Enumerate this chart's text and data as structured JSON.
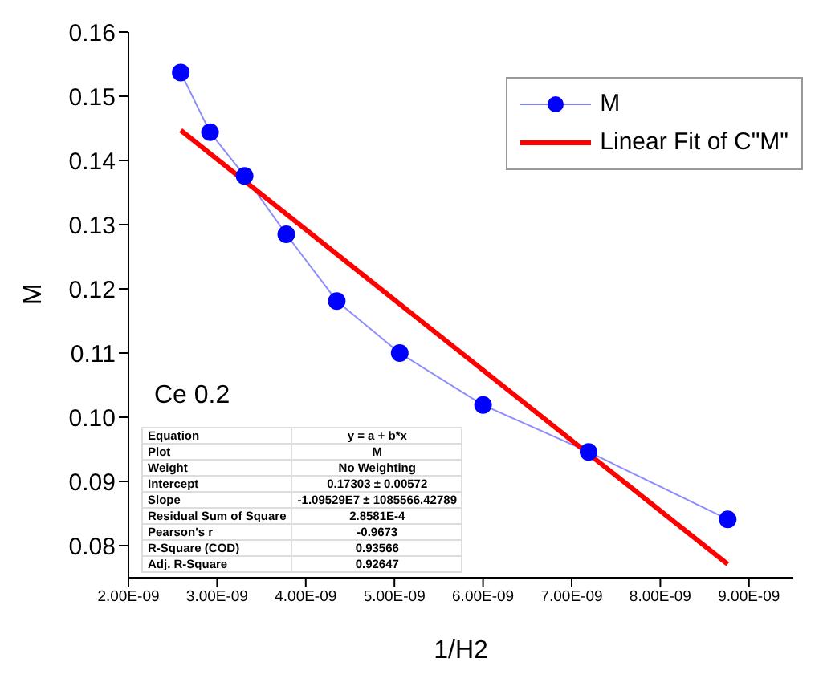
{
  "chart_data": {
    "type": "line",
    "xlabel": "1/H2",
    "ylabel": "M",
    "xlim": [
      2e-09,
      9.5e-09
    ],
    "xticks": [
      {
        "value": 2e-09,
        "label": "2.00E-09"
      },
      {
        "value": 3e-09,
        "label": "3.00E-09"
      },
      {
        "value": 4e-09,
        "label": "4.00E-09"
      },
      {
        "value": 5e-09,
        "label": "5.00E-09"
      },
      {
        "value": 6e-09,
        "label": "6.00E-09"
      },
      {
        "value": 7e-09,
        "label": "7.00E-09"
      },
      {
        "value": 8e-09,
        "label": "8.00E-09"
      },
      {
        "value": 9e-09,
        "label": "9.00E-09"
      }
    ],
    "ylim": [
      0.075,
      0.16
    ],
    "yticks": [
      {
        "value": 0.08,
        "label": "0.08"
      },
      {
        "value": 0.09,
        "label": "0.09"
      },
      {
        "value": 0.1,
        "label": "0.10"
      },
      {
        "value": 0.11,
        "label": "0.11"
      },
      {
        "value": 0.12,
        "label": "0.12"
      },
      {
        "value": 0.13,
        "label": "0.13"
      },
      {
        "value": 0.14,
        "label": "0.14"
      },
      {
        "value": 0.15,
        "label": "0.15"
      },
      {
        "value": 0.16,
        "label": "0.16"
      }
    ],
    "series": [
      {
        "name": "M",
        "color": "#0000ff",
        "marker": "circle",
        "x": [
          2.59e-09,
          2.92e-09,
          3.31e-09,
          3.78e-09,
          4.35e-09,
          5.06e-09,
          6e-09,
          7.19e-09,
          8.76e-09
        ],
        "values": [
          0.1537,
          0.1444,
          0.1376,
          0.1285,
          0.1181,
          0.11,
          0.1019,
          0.0946,
          0.0841
        ]
      },
      {
        "name": "Linear Fit of C\"M\"",
        "color": "#ff0000",
        "marker": "none",
        "x": [
          2.59e-09,
          8.76e-09
        ],
        "values": [
          0.1447,
          0.0771
        ]
      }
    ],
    "legend": "top right",
    "grid": false,
    "line_style": "solid",
    "annotations": [
      "Ce 0.2",
      "Equation",
      "y = a + b*x",
      "Plot",
      "M",
      "Weight",
      "No Weighting",
      "Intercept",
      "0.17303 ± 0.00572",
      "Slope",
      "-1.09529E7 ± 1085566.42789",
      "Residual Sum of Square",
      "2.8581E-4",
      "Pearson's r",
      "-0.9673",
      "R-Square (COD)",
      "0.93566",
      "Adj. R-Square",
      "0.92647"
    ]
  }
}
